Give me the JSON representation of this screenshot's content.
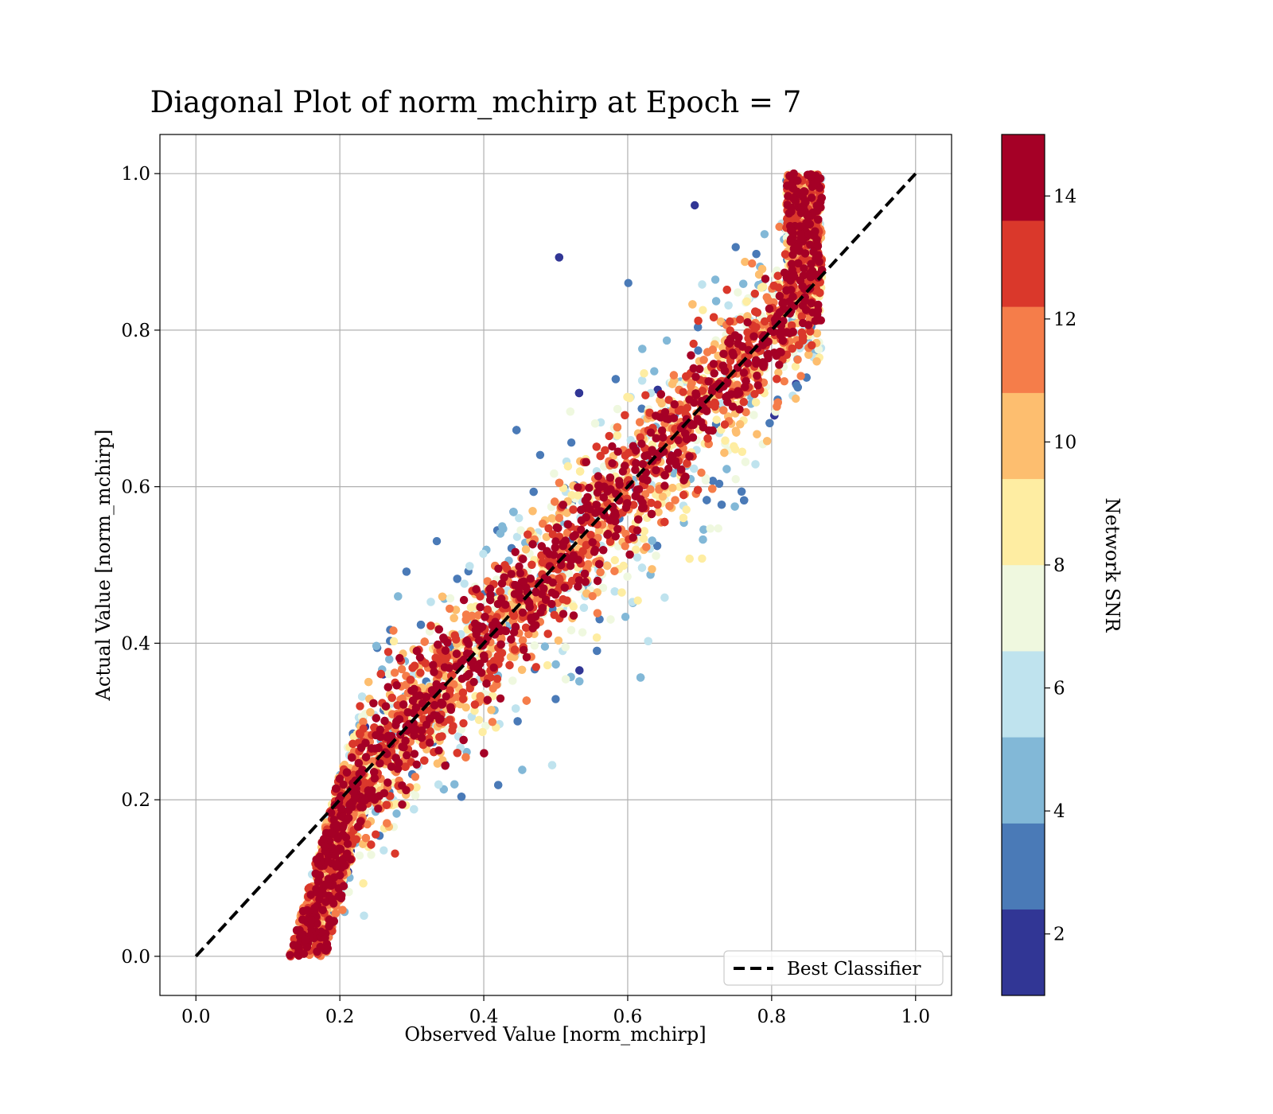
{
  "chart_data": {
    "type": "scatter",
    "title": "Diagonal Plot of norm_mchirp at Epoch = 7",
    "xlabel": "Observed Value [norm_mchirp]",
    "ylabel": "Actual Value [norm_mchirp]",
    "xlim": [
      -0.05,
      1.05
    ],
    "ylim": [
      -0.05,
      1.05
    ],
    "xticks": [
      {
        "value": 0.0,
        "label": "0.0"
      },
      {
        "value": 0.2,
        "label": "0.2"
      },
      {
        "value": 0.4,
        "label": "0.4"
      },
      {
        "value": 0.6,
        "label": "0.6"
      },
      {
        "value": 0.8,
        "label": "0.8"
      },
      {
        "value": 1.0,
        "label": "1.0"
      }
    ],
    "yticks": [
      {
        "value": 0.0,
        "label": "0.0"
      },
      {
        "value": 0.2,
        "label": "0.2"
      },
      {
        "value": 0.4,
        "label": "0.4"
      },
      {
        "value": 0.6,
        "label": "0.6"
      },
      {
        "value": 0.8,
        "label": "0.8"
      },
      {
        "value": 1.0,
        "label": "1.0"
      }
    ],
    "grid": true,
    "legend": {
      "placement": "lower-right",
      "entries": [
        {
          "label": "Best Classifier",
          "style": "dashed",
          "color": "#000000"
        }
      ]
    },
    "reference_line": {
      "name": "Best Classifier",
      "x": [
        0.0,
        1.0
      ],
      "y": [
        0.0,
        1.0
      ]
    },
    "colorbar": {
      "label": "Network SNR",
      "range": [
        1,
        15
      ],
      "ticks": [
        {
          "value": 2,
          "label": "2"
        },
        {
          "value": 4,
          "label": "4"
        },
        {
          "value": 6,
          "label": "6"
        },
        {
          "value": 8,
          "label": "8"
        },
        {
          "value": 10,
          "label": "10"
        },
        {
          "value": 12,
          "label": "12"
        },
        {
          "value": 14,
          "label": "14"
        }
      ],
      "colors": [
        "#313695",
        "#4a7ab7",
        "#82b8d7",
        "#bfe3ee",
        "#eff8df",
        "#feeda2",
        "#fdbe6f",
        "#f57d4a",
        "#da382b",
        "#a50026"
      ]
    },
    "scatter_model": {
      "description_of_distribution": "points cluster around the diagonal; lower SNR spreads further from it",
      "actual_range": [
        0.0,
        1.0
      ],
      "point_color_by": "Network SNR"
    }
  }
}
